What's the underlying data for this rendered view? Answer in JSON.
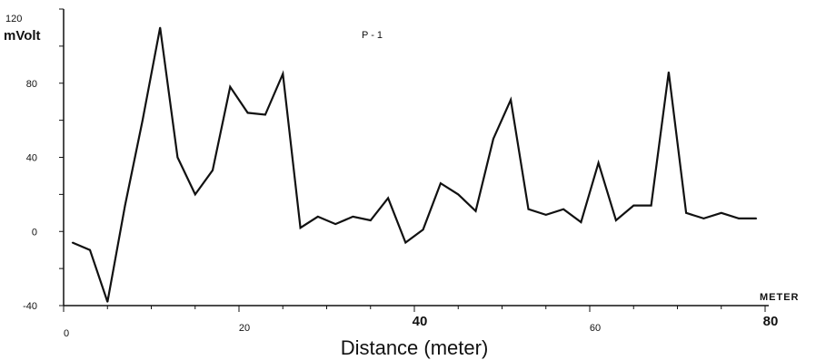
{
  "chart_data": {
    "type": "line",
    "title": "P - 1",
    "xlabel": "Distance (meter)",
    "ylabel": "mVolt",
    "x_unit_label": "METER",
    "xlim": [
      0,
      80
    ],
    "ylim": [
      -40,
      120
    ],
    "x_ticks": [
      {
        "value": 0,
        "label": "0",
        "bold": false
      },
      {
        "value": 20,
        "label": "20",
        "bold": false
      },
      {
        "value": 40,
        "label": "40",
        "bold": true
      },
      {
        "value": 60,
        "label": "60",
        "bold": false
      },
      {
        "value": 80,
        "label": "80",
        "bold": true
      }
    ],
    "y_ticks": [
      {
        "value": -40,
        "label": "-40"
      },
      {
        "value": 0,
        "label": "0"
      },
      {
        "value": 40,
        "label": "40"
      },
      {
        "value": 80,
        "label": "80"
      },
      {
        "value": 120,
        "label": "120"
      }
    ],
    "grid": false,
    "line_color": "#111111",
    "series": [
      {
        "x": [
          1,
          3,
          5,
          7,
          9,
          11,
          13,
          15,
          17,
          19,
          21,
          23,
          25,
          27,
          29,
          31,
          33,
          35,
          37,
          39,
          41,
          43,
          45,
          47,
          49,
          51,
          53,
          55,
          57,
          59,
          61,
          63,
          65,
          67,
          69,
          71,
          73,
          75,
          77,
          79
        ],
        "values": [
          -6,
          -10,
          -38,
          14,
          60,
          110,
          40,
          20,
          33,
          78,
          64,
          63,
          85,
          2,
          8,
          4,
          8,
          6,
          18,
          -6,
          1,
          26,
          20,
          11,
          50,
          71,
          12,
          9,
          12,
          5,
          37,
          6,
          14,
          14,
          86,
          10,
          7,
          10,
          7,
          7
        ]
      }
    ]
  }
}
